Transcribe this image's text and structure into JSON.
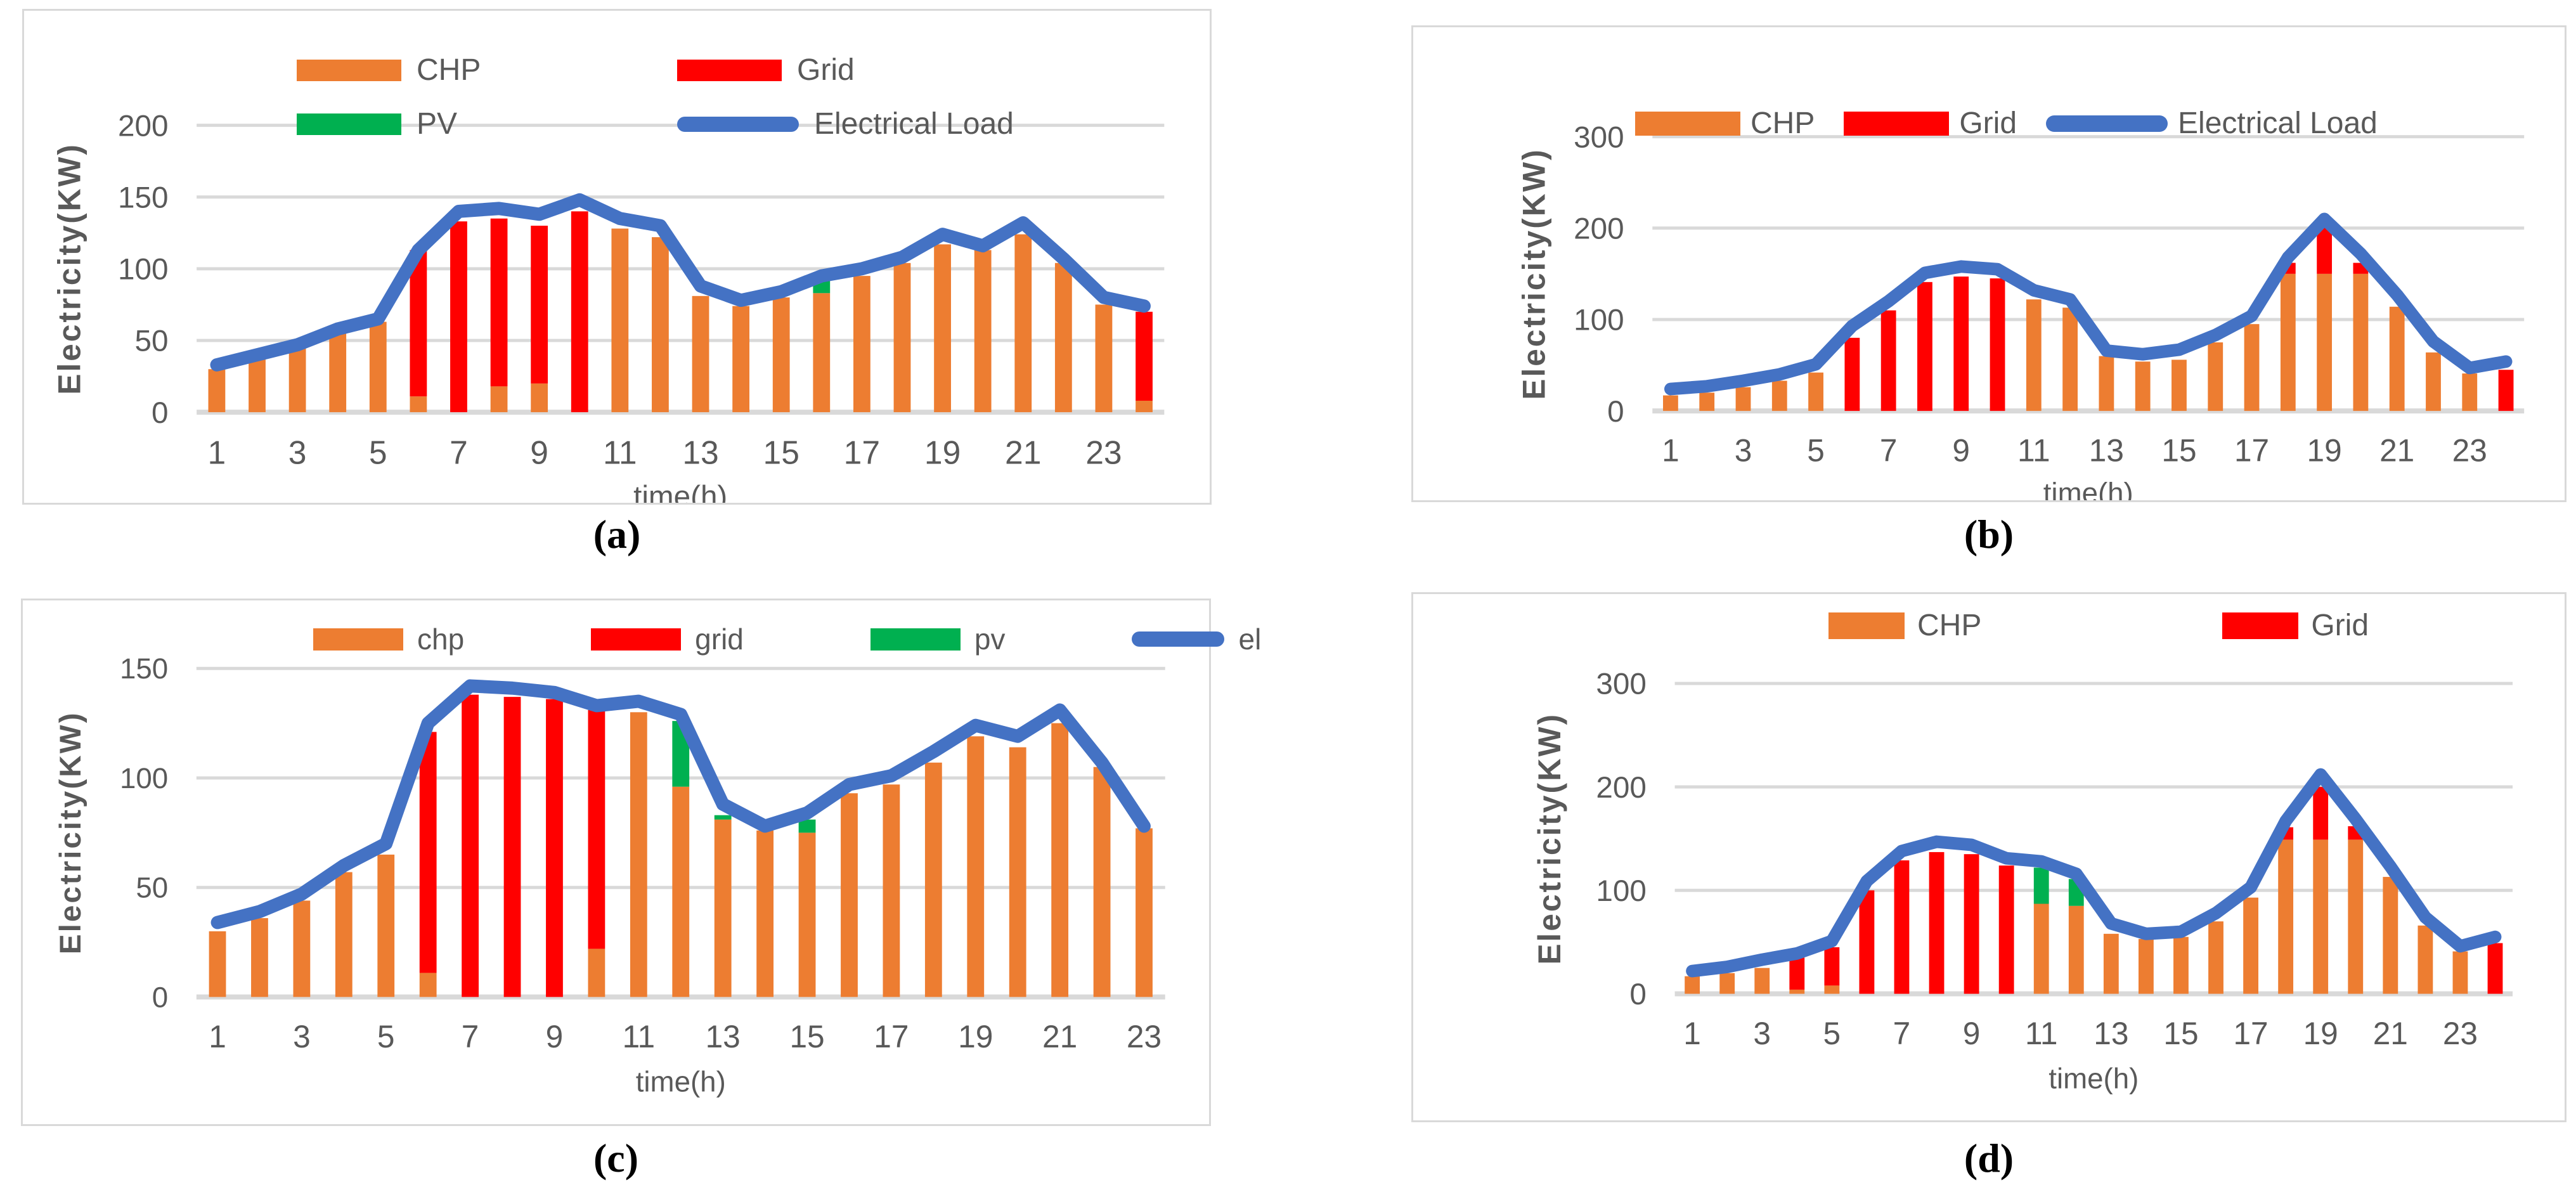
{
  "figure": {
    "captions": [
      "(a)",
      "(b)",
      "(c)",
      "(d)"
    ]
  },
  "colors": {
    "chp_orange": "#ED7D31",
    "grid_red": "#FF0000",
    "pv_green": "#00B050",
    "load_blue": "#4472C4",
    "gridline_gray": "#D9D9D9",
    "tick_text_gray": "#595959",
    "caption_black": "#000000"
  },
  "chart_data": [
    {
      "type": "bar+line",
      "panel": "a",
      "title": "",
      "xlabel": "time(h)",
      "ylabel": "Electricity(KW)",
      "x": [
        1,
        2,
        3,
        4,
        5,
        6,
        7,
        8,
        9,
        10,
        11,
        12,
        13,
        14,
        15,
        16,
        17,
        18,
        19,
        20,
        21,
        22,
        23,
        24
      ],
      "xticks": [
        1,
        3,
        5,
        7,
        9,
        11,
        13,
        15,
        17,
        19,
        21,
        23
      ],
      "yticks": [
        0,
        50,
        100,
        150,
        200
      ],
      "ylim": [
        0,
        200
      ],
      "grid": true,
      "legend_position": "top-center-two-rows",
      "legend": [
        {
          "label": "CHP",
          "swatch": "bar",
          "color": "#ED7D31"
        },
        {
          "label": "Grid",
          "swatch": "bar",
          "color": "#FF0000"
        },
        {
          "label": "PV",
          "swatch": "bar",
          "color": "#00B050"
        },
        {
          "label": "Electrical Load",
          "swatch": "line",
          "color": "#4472C4"
        }
      ],
      "series": [
        {
          "name": "CHP",
          "type": "bar",
          "color": "#ED7D31",
          "values": [
            30,
            38,
            45,
            55,
            63,
            11,
            0,
            18,
            20,
            0,
            128,
            122,
            81,
            74,
            80,
            83,
            95,
            104,
            117,
            113,
            124,
            104,
            75,
            8
          ]
        },
        {
          "name": "Grid",
          "type": "bar",
          "color": "#FF0000",
          "values": [
            0,
            0,
            0,
            0,
            0,
            102,
            133,
            117,
            110,
            140,
            0,
            0,
            0,
            0,
            0,
            0,
            0,
            0,
            0,
            0,
            0,
            0,
            0,
            62
          ]
        },
        {
          "name": "PV",
          "type": "bar",
          "color": "#00B050",
          "values": [
            0,
            0,
            0,
            0,
            0,
            0,
            0,
            0,
            0,
            0,
            0,
            0,
            0,
            0,
            0,
            10,
            0,
            0,
            0,
            0,
            0,
            0,
            0,
            0
          ]
        },
        {
          "name": "Electrical Load",
          "type": "line",
          "color": "#4472C4",
          "values": [
            33,
            40,
            47,
            58,
            65,
            113,
            140,
            142,
            138,
            148,
            135,
            130,
            88,
            78,
            84,
            95,
            100,
            108,
            124,
            116,
            132,
            107,
            80,
            74
          ]
        }
      ]
    },
    {
      "type": "bar+line",
      "panel": "b",
      "title": "",
      "xlabel": "time(h)",
      "ylabel": "Electricity(KW)",
      "x": [
        1,
        2,
        3,
        4,
        5,
        6,
        7,
        8,
        9,
        10,
        11,
        12,
        13,
        14,
        15,
        16,
        17,
        18,
        19,
        20,
        21,
        22,
        23,
        24
      ],
      "xticks": [
        1,
        3,
        5,
        7,
        9,
        11,
        13,
        15,
        17,
        19,
        21,
        23
      ],
      "yticks": [
        0,
        100,
        200,
        300
      ],
      "ylim": [
        0,
        300
      ],
      "grid": true,
      "legend_position": "top-center-row",
      "legend": [
        {
          "label": "CHP",
          "swatch": "bar",
          "color": "#ED7D31"
        },
        {
          "label": "Grid",
          "swatch": "bar",
          "color": "#FF0000"
        },
        {
          "label": "Electrical Load",
          "swatch": "line",
          "color": "#4472C4"
        }
      ],
      "series": [
        {
          "name": "CHP",
          "type": "bar",
          "color": "#ED7D31",
          "values": [
            17,
            20,
            26,
            33,
            42,
            0,
            0,
            0,
            0,
            0,
            122,
            113,
            60,
            54,
            56,
            75,
            95,
            150,
            150,
            150,
            114,
            64,
            41,
            0
          ]
        },
        {
          "name": "Grid",
          "type": "bar",
          "color": "#FF0000",
          "values": [
            0,
            0,
            0,
            0,
            0,
            80,
            110,
            141,
            147,
            145,
            0,
            0,
            0,
            0,
            0,
            0,
            0,
            12,
            51,
            12,
            0,
            0,
            0,
            45
          ]
        },
        {
          "name": "Electrical Load",
          "type": "line",
          "color": "#4472C4",
          "values": [
            24,
            27,
            33,
            40,
            51,
            93,
            120,
            151,
            158,
            155,
            132,
            122,
            66,
            62,
            67,
            83,
            104,
            168,
            210,
            172,
            127,
            76,
            47,
            54
          ]
        }
      ]
    },
    {
      "type": "bar+line",
      "panel": "c",
      "title": "",
      "xlabel": "time(h)",
      "ylabel": "Electricity(KW)",
      "x": [
        1,
        2,
        3,
        4,
        5,
        6,
        7,
        8,
        9,
        10,
        11,
        12,
        13,
        14,
        15,
        16,
        17,
        18,
        19,
        20,
        21,
        22,
        23
      ],
      "xticks": [
        1,
        3,
        5,
        7,
        9,
        11,
        13,
        15,
        17,
        19,
        21,
        23
      ],
      "yticks": [
        0,
        50,
        100,
        150
      ],
      "ylim": [
        0,
        150
      ],
      "grid": true,
      "legend_position": "top-center-row",
      "legend": [
        {
          "label": "chp",
          "swatch": "bar",
          "color": "#ED7D31"
        },
        {
          "label": "grid",
          "swatch": "bar",
          "color": "#FF0000"
        },
        {
          "label": "pv",
          "swatch": "bar",
          "color": "#00B050"
        },
        {
          "label": "el",
          "swatch": "line",
          "color": "#4472C4"
        }
      ],
      "series": [
        {
          "name": "chp",
          "type": "bar",
          "color": "#ED7D31",
          "values": [
            30,
            36,
            44,
            57,
            65,
            11,
            0,
            0,
            0,
            22,
            130,
            96,
            81,
            76,
            75,
            93,
            97,
            107,
            119,
            114,
            125,
            105,
            77
          ]
        },
        {
          "name": "grid",
          "type": "bar",
          "color": "#FF0000",
          "values": [
            0,
            0,
            0,
            0,
            0,
            110,
            138,
            137,
            136,
            109,
            0,
            0,
            0,
            0,
            0,
            0,
            0,
            0,
            0,
            0,
            0,
            0,
            0
          ]
        },
        {
          "name": "pv",
          "type": "bar",
          "color": "#00B050",
          "values": [
            0,
            0,
            0,
            0,
            0,
            0,
            0,
            0,
            0,
            0,
            0,
            30,
            2,
            0,
            6,
            0,
            0,
            0,
            0,
            0,
            0,
            0,
            0
          ]
        },
        {
          "name": "el",
          "type": "line",
          "color": "#4472C4",
          "values": [
            34,
            39,
            47,
            60,
            70,
            125,
            142,
            141,
            139,
            133,
            135,
            129,
            88,
            78,
            84,
            97,
            101,
            112,
            124,
            119,
            131,
            107,
            78
          ]
        }
      ]
    },
    {
      "type": "bar+line",
      "panel": "d",
      "title": "",
      "xlabel": "time(h)",
      "ylabel": "Electricity(KW)",
      "x": [
        1,
        2,
        3,
        4,
        5,
        6,
        7,
        8,
        9,
        10,
        11,
        12,
        13,
        14,
        15,
        16,
        17,
        18,
        19,
        20,
        21,
        22,
        23,
        24
      ],
      "xticks": [
        1,
        3,
        5,
        7,
        9,
        11,
        13,
        15,
        17,
        19,
        21,
        23
      ],
      "yticks": [
        0,
        100,
        200,
        300
      ],
      "ylim": [
        0,
        300
      ],
      "grid": true,
      "legend_position": "top-center-row",
      "legend": [
        {
          "label": "CHP",
          "swatch": "bar",
          "color": "#ED7D31"
        },
        {
          "label": "Grid",
          "swatch": "bar",
          "color": "#FF0000"
        }
      ],
      "series": [
        {
          "name": "CHP",
          "type": "bar",
          "color": "#ED7D31",
          "values": [
            17,
            20,
            25,
            4,
            8,
            0,
            0,
            0,
            0,
            0,
            87,
            85,
            58,
            53,
            55,
            70,
            93,
            149,
            149,
            149,
            113,
            66,
            41,
            0
          ]
        },
        {
          "name": "Grid",
          "type": "bar",
          "color": "#FF0000",
          "values": [
            0,
            0,
            0,
            31,
            37,
            100,
            129,
            137,
            135,
            124,
            0,
            0,
            0,
            0,
            0,
            0,
            0,
            12,
            51,
            13,
            0,
            0,
            0,
            49
          ]
        },
        {
          "name": "PV",
          "type": "bar",
          "color": "#00B050",
          "values": [
            0,
            0,
            0,
            0,
            0,
            0,
            0,
            0,
            0,
            0,
            35,
            26,
            0,
            0,
            0,
            0,
            0,
            0,
            0,
            0,
            0,
            0,
            0,
            0
          ]
        },
        {
          "name": "Electrical Load",
          "type": "line",
          "color": "#4472C4",
          "values": [
            22,
            26,
            33,
            39,
            51,
            109,
            138,
            147,
            144,
            131,
            128,
            116,
            68,
            58,
            60,
            78,
            103,
            167,
            212,
            169,
            123,
            74,
            46,
            55
          ]
        }
      ]
    }
  ]
}
